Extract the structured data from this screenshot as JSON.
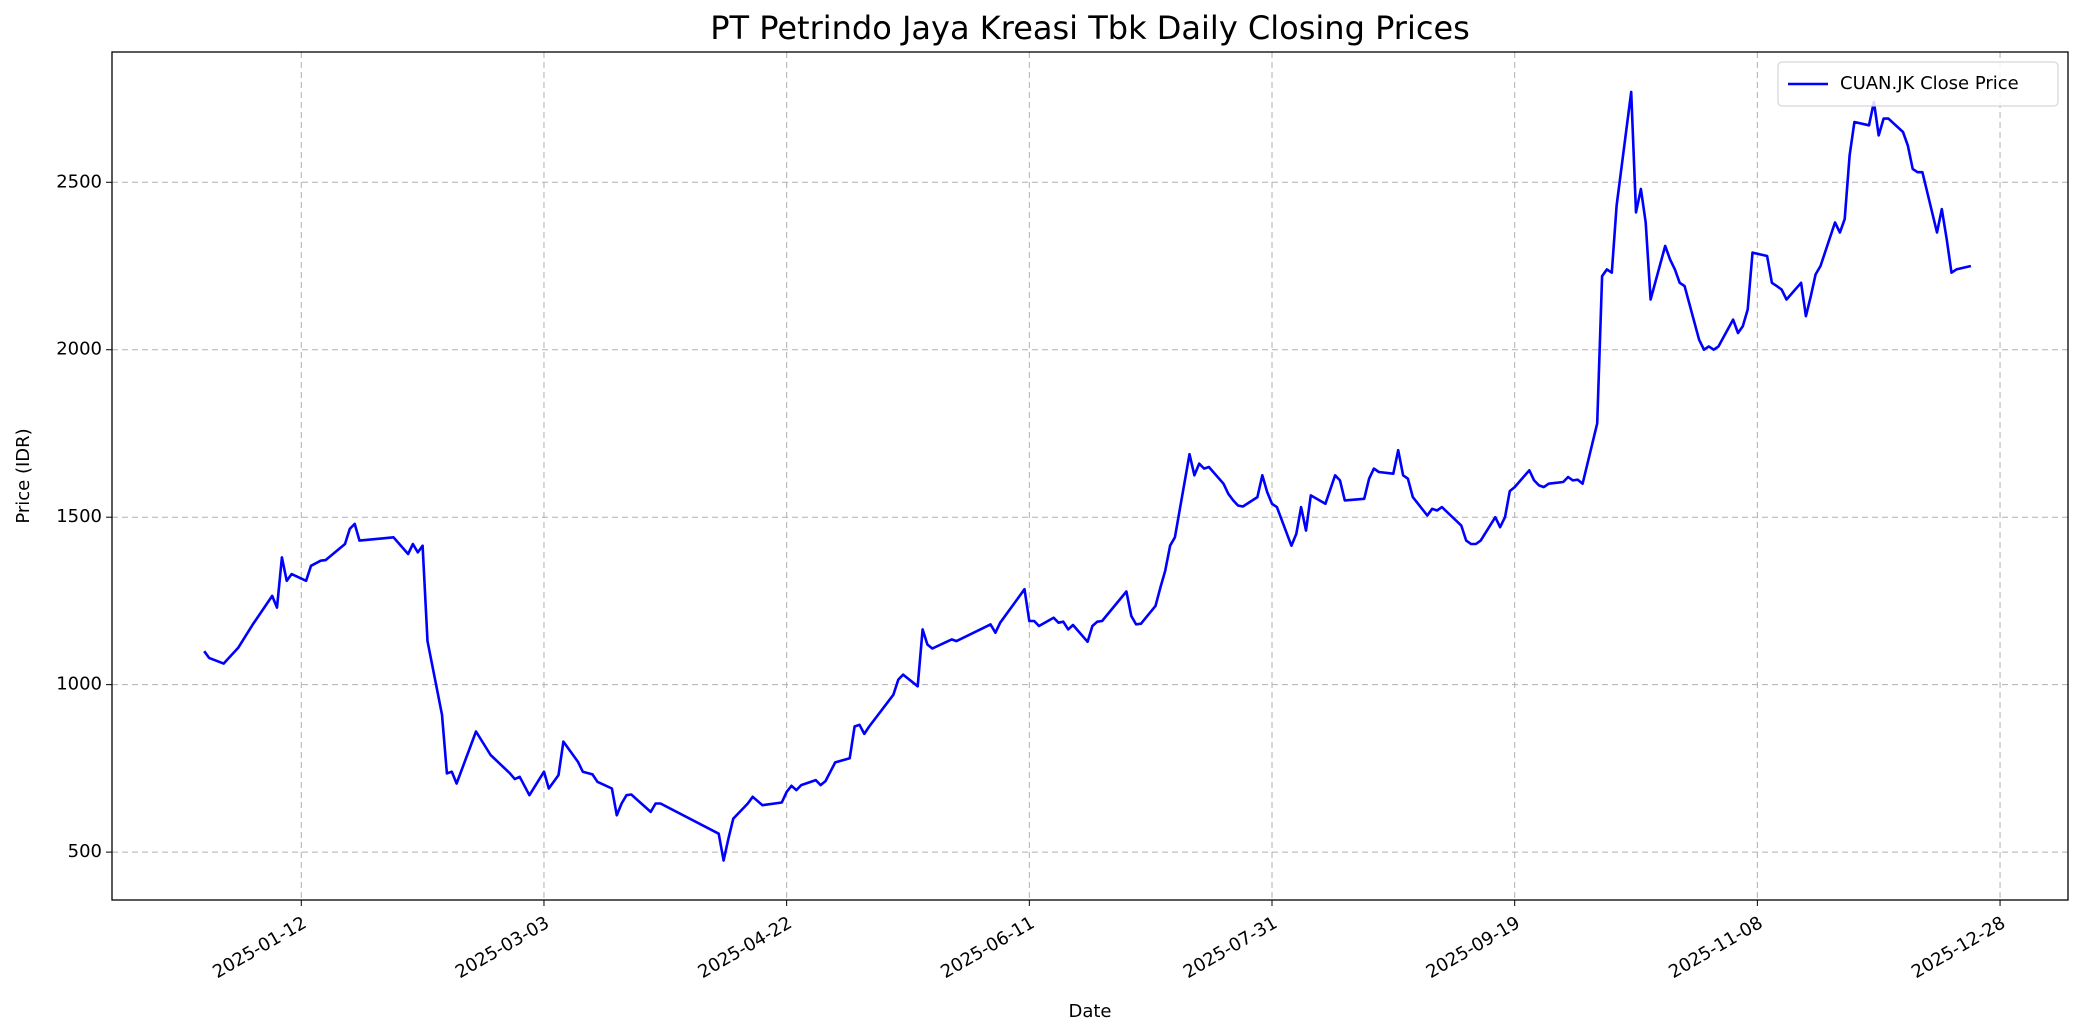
{
  "chart_data": {
    "type": "line",
    "title": "PT Petrindo Jaya Kreasi Tbk Daily Closing Prices",
    "xlabel": "Date",
    "ylabel": "Price (IDR)",
    "xlim": [
      "2024-12-04",
      "2026-01-11"
    ],
    "xticks": [
      "2025-01-12",
      "2025-03-03",
      "2025-04-22",
      "2025-06-11",
      "2025-07-31",
      "2025-09-19",
      "2025-11-08",
      "2025-12-28"
    ],
    "ylim": [
      357,
      2889
    ],
    "yticks": [
      500,
      1000,
      1500,
      2000,
      2500
    ],
    "grid": true,
    "legend": "upper right",
    "x": [
      "2024-12-23",
      "2024-12-24",
      "2024-12-27",
      "2024-12-30",
      "2025-01-02",
      "2025-01-06",
      "2025-01-07",
      "2025-01-08",
      "2025-01-09",
      "2025-01-10",
      "2025-01-13",
      "2025-01-14",
      "2025-01-16",
      "2025-01-17",
      "2025-01-21",
      "2025-01-22",
      "2025-01-23",
      "2025-01-24",
      "2025-01-31",
      "2025-02-03",
      "2025-02-04",
      "2025-02-05",
      "2025-02-06",
      "2025-02-07",
      "2025-02-10",
      "2025-02-11",
      "2025-02-12",
      "2025-02-13",
      "2025-02-17",
      "2025-02-20",
      "2025-02-24",
      "2025-02-25",
      "2025-02-26",
      "2025-02-28",
      "2025-03-03",
      "2025-03-04",
      "2025-03-06",
      "2025-03-07",
      "2025-03-10",
      "2025-03-11",
      "2025-03-13",
      "2025-03-14",
      "2025-03-17",
      "2025-03-18",
      "2025-03-19",
      "2025-03-20",
      "2025-03-21",
      "2025-03-25",
      "2025-03-26",
      "2025-03-27",
      "2025-04-08",
      "2025-04-09",
      "2025-04-10",
      "2025-04-11",
      "2025-04-14",
      "2025-04-15",
      "2025-04-17",
      "2025-04-21",
      "2025-04-22",
      "2025-04-23",
      "2025-04-24",
      "2025-04-25",
      "2025-04-28",
      "2025-04-29",
      "2025-04-30",
      "2025-05-02",
      "2025-05-05",
      "2025-05-06",
      "2025-05-07",
      "2025-05-08",
      "2025-05-09",
      "2025-05-14",
      "2025-05-15",
      "2025-05-16",
      "2025-05-19",
      "2025-05-20",
      "2025-05-21",
      "2025-05-22",
      "2025-05-26",
      "2025-05-27",
      "2025-06-03",
      "2025-06-04",
      "2025-06-05",
      "2025-06-10",
      "2025-06-11",
      "2025-06-12",
      "2025-06-13",
      "2025-06-16",
      "2025-06-17",
      "2025-06-18",
      "2025-06-19",
      "2025-06-20",
      "2025-06-23",
      "2025-06-24",
      "2025-06-25",
      "2025-06-26",
      "2025-07-01",
      "2025-07-02",
      "2025-07-03",
      "2025-07-04",
      "2025-07-07",
      "2025-07-08",
      "2025-07-09",
      "2025-07-10",
      "2025-07-11",
      "2025-07-14",
      "2025-07-15",
      "2025-07-16",
      "2025-07-17",
      "2025-07-18",
      "2025-07-21",
      "2025-07-22",
      "2025-07-23",
      "2025-07-24",
      "2025-07-25",
      "2025-07-28",
      "2025-07-29",
      "2025-07-30",
      "2025-07-31",
      "2025-08-01",
      "2025-08-04",
      "2025-08-05",
      "2025-08-06",
      "2025-08-07",
      "2025-08-08",
      "2025-08-11",
      "2025-08-13",
      "2025-08-14",
      "2025-08-15",
      "2025-08-19",
      "2025-08-20",
      "2025-08-21",
      "2025-08-22",
      "2025-08-25",
      "2025-08-26",
      "2025-08-27",
      "2025-08-28",
      "2025-08-29",
      "2025-09-01",
      "2025-09-02",
      "2025-09-03",
      "2025-09-04",
      "2025-09-08",
      "2025-09-09",
      "2025-09-10",
      "2025-09-11",
      "2025-09-12",
      "2025-09-15",
      "2025-09-16",
      "2025-09-17",
      "2025-09-18",
      "2025-09-19",
      "2025-09-22",
      "2025-09-23",
      "2025-09-24",
      "2025-09-25",
      "2025-09-26",
      "2025-09-29",
      "2025-09-30",
      "2025-10-01",
      "2025-10-02",
      "2025-10-03",
      "2025-10-06",
      "2025-10-07",
      "2025-10-08",
      "2025-10-09",
      "2025-10-10",
      "2025-10-13",
      "2025-10-14",
      "2025-10-15",
      "2025-10-16",
      "2025-10-17",
      "2025-10-20",
      "2025-10-21",
      "2025-10-22",
      "2025-10-23",
      "2025-10-24",
      "2025-10-27",
      "2025-10-28",
      "2025-10-29",
      "2025-10-30",
      "2025-10-31",
      "2025-11-03",
      "2025-11-04",
      "2025-11-05",
      "2025-11-06",
      "2025-11-07",
      "2025-11-10",
      "2025-11-11",
      "2025-11-12",
      "2025-11-13",
      "2025-11-14",
      "2025-11-17",
      "2025-11-18",
      "2025-11-19",
      "2025-11-20",
      "2025-11-21",
      "2025-11-24",
      "2025-11-25",
      "2025-11-26",
      "2025-11-27",
      "2025-11-28",
      "2025-12-01",
      "2025-12-02",
      "2025-12-03",
      "2025-12-04",
      "2025-12-05",
      "2025-12-08",
      "2025-12-09",
      "2025-12-10",
      "2025-12-11",
      "2025-12-12",
      "2025-12-15",
      "2025-12-16",
      "2025-12-17",
      "2025-12-18",
      "2025-12-19",
      "2025-12-22"
    ],
    "series": [
      {
        "name": "CUAN.JK Close Price",
        "color": "#0000ff",
        "values": [
          1100,
          1080,
          1063,
          1110,
          1180,
          1265,
          1230,
          1380,
          1310,
          1330,
          1310,
          1355,
          1370,
          1372,
          1420,
          1465,
          1480,
          1430,
          1440,
          1390,
          1420,
          1395,
          1415,
          1130,
          910,
          735,
          740,
          705,
          860,
          790,
          735,
          718,
          725,
          670,
          740,
          690,
          730,
          830,
          770,
          740,
          732,
          710,
          690,
          610,
          645,
          670,
          672,
          620,
          645,
          645,
          555,
          475,
          540,
          600,
          645,
          665,
          640,
          648,
          680,
          698,
          685,
          700,
          715,
          700,
          712,
          768,
          780,
          875,
          880,
          853,
          875,
          970,
          1015,
          1030,
          995,
          1165,
          1120,
          1108,
          1135,
          1130,
          1180,
          1155,
          1185,
          1285,
          1190,
          1190,
          1175,
          1200,
          1185,
          1188,
          1165,
          1178,
          1128,
          1175,
          1188,
          1190,
          1278,
          1205,
          1180,
          1182,
          1235,
          1290,
          1340,
          1415,
          1440,
          1688,
          1625,
          1660,
          1645,
          1650,
          1600,
          1570,
          1550,
          1535,
          1532,
          1560,
          1625,
          1575,
          1540,
          1530,
          1415,
          1450,
          1530,
          1460,
          1565,
          1540,
          1625,
          1610,
          1550,
          1555,
          1615,
          1645,
          1635,
          1630,
          1700,
          1625,
          1615,
          1560,
          1505,
          1525,
          1520,
          1530,
          1475,
          1430,
          1420,
          1420,
          1430,
          1500,
          1470,
          1500,
          1578,
          1590,
          1640,
          1610,
          1595,
          1590,
          1600,
          1605,
          1620,
          1610,
          1612,
          1600,
          1780,
          2220,
          2240,
          2230,
          2430,
          2770,
          2410,
          2480,
          2380,
          2150,
          2310,
          2270,
          2240,
          2200,
          2190,
          2030,
          2000,
          2010,
          2000,
          2010,
          2090,
          2050,
          2070,
          2120,
          2290,
          2280,
          2200,
          2190,
          2180,
          2150,
          2200,
          2100,
          2160,
          2225,
          2250,
          2380,
          2350,
          2390,
          2580,
          2680,
          2670,
          2740,
          2640,
          2690,
          2690,
          2650,
          2610,
          2540,
          2530,
          2530,
          2350,
          2420,
          2330,
          2230,
          2240,
          2250
        ]
      }
    ]
  }
}
